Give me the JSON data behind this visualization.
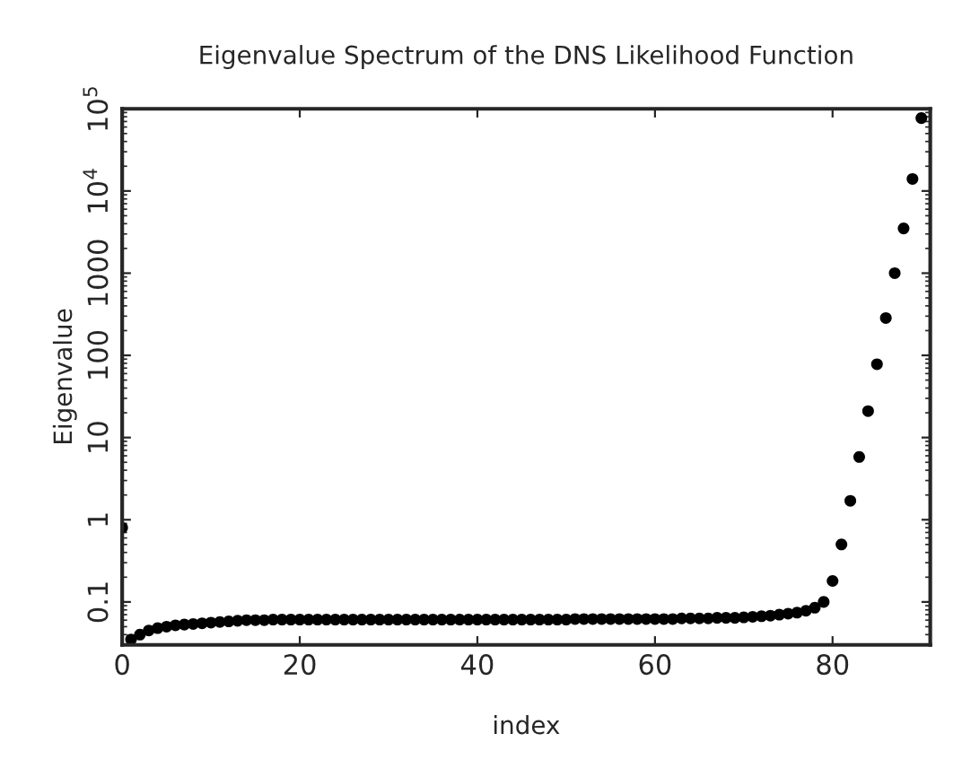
{
  "chart_data": {
    "type": "scatter",
    "title": "Eigenvalue Spectrum of the DNS Likelihood Function",
    "xlabel": "index",
    "ylabel": "Eigenvalue",
    "x": [
      0,
      1,
      2,
      3,
      4,
      5,
      6,
      7,
      8,
      9,
      10,
      11,
      12,
      13,
      14,
      15,
      16,
      17,
      18,
      19,
      20,
      21,
      22,
      23,
      24,
      25,
      26,
      27,
      28,
      29,
      30,
      31,
      32,
      33,
      34,
      35,
      36,
      37,
      38,
      39,
      40,
      41,
      42,
      43,
      44,
      45,
      46,
      47,
      48,
      49,
      50,
      51,
      52,
      53,
      54,
      55,
      56,
      57,
      58,
      59,
      60,
      61,
      62,
      63,
      64,
      65,
      66,
      67,
      68,
      69,
      70,
      71,
      72,
      73,
      74,
      75,
      76,
      77,
      78,
      79,
      80,
      81,
      82,
      83,
      84,
      85,
      86,
      87,
      88,
      89,
      90
    ],
    "series": [
      {
        "color": "#000000",
        "values": [
          0.8,
          0.035,
          0.04,
          0.045,
          0.048,
          0.05,
          0.052,
          0.053,
          0.054,
          0.055,
          0.056,
          0.057,
          0.058,
          0.059,
          0.06,
          0.06,
          0.06,
          0.061,
          0.061,
          0.061,
          0.061,
          0.061,
          0.061,
          0.061,
          0.061,
          0.061,
          0.061,
          0.061,
          0.061,
          0.061,
          0.061,
          0.061,
          0.061,
          0.061,
          0.061,
          0.061,
          0.061,
          0.061,
          0.061,
          0.061,
          0.061,
          0.061,
          0.061,
          0.061,
          0.061,
          0.061,
          0.061,
          0.061,
          0.061,
          0.061,
          0.061,
          0.062,
          0.062,
          0.062,
          0.062,
          0.062,
          0.062,
          0.062,
          0.062,
          0.062,
          0.062,
          0.062,
          0.062,
          0.063,
          0.063,
          0.063,
          0.063,
          0.064,
          0.064,
          0.064,
          0.065,
          0.066,
          0.067,
          0.068,
          0.07,
          0.072,
          0.074,
          0.078,
          0.085,
          0.1,
          0.18,
          0.5,
          1.7,
          5.8,
          21,
          78,
          285,
          1000,
          3500,
          14000,
          77000
        ]
      }
    ],
    "xlim": [
      0,
      91
    ],
    "xticks": [
      0,
      20,
      40,
      60,
      80
    ],
    "ylim": [
      0.03,
      100000
    ],
    "yticks": [
      {
        "value": 0.1,
        "label": "0.1"
      },
      {
        "value": 1,
        "label": "1"
      },
      {
        "value": 10,
        "label": "10"
      },
      {
        "value": 100,
        "label": "100"
      },
      {
        "value": 1000,
        "label": "1000"
      },
      {
        "value": 10000,
        "label": "10$^{4}$"
      },
      {
        "value": 100000,
        "label": "10$^{5}$"
      }
    ],
    "log": "y",
    "grid": false,
    "marker": "circle"
  }
}
